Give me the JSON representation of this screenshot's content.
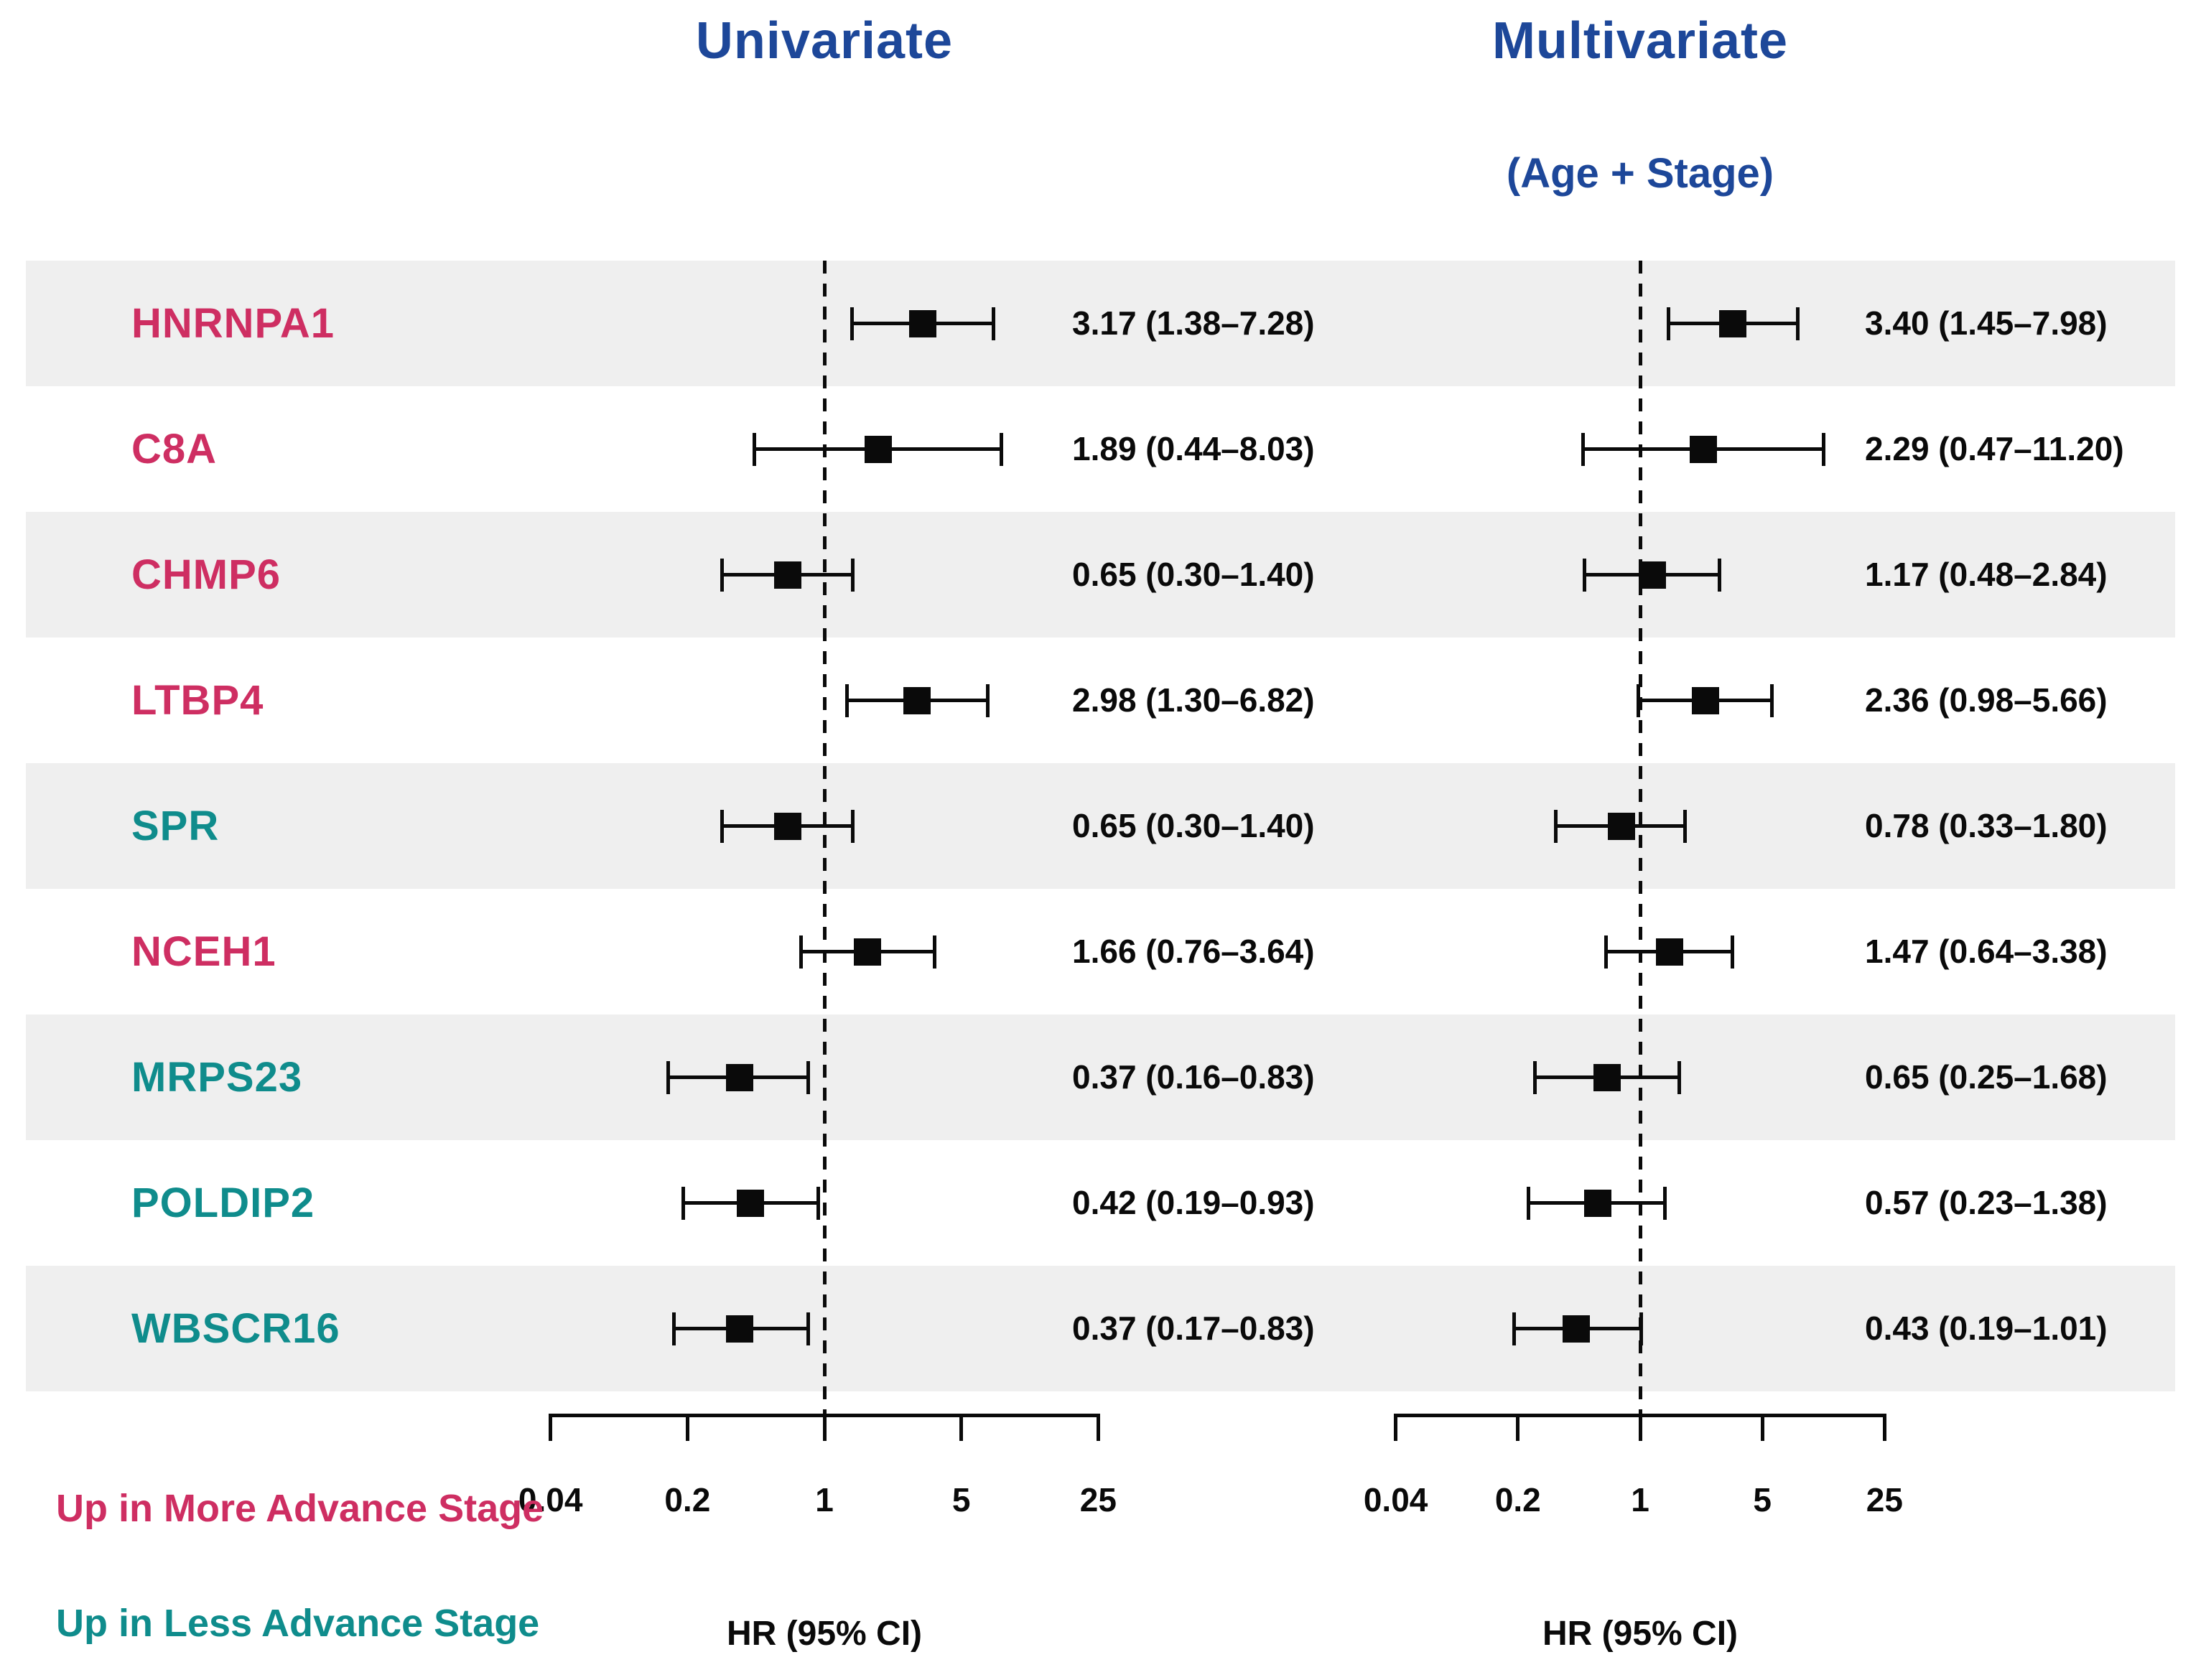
{
  "titles": {
    "univariate": "Univariate",
    "multivariate": "Multivariate",
    "multivariate_sub": "(Age + Stage)"
  },
  "axis": {
    "xlabel": "HR (95% CI)",
    "scale": "log",
    "reference_value": 1
  },
  "legend": {
    "up_more": "Up in More Advance Stage",
    "up_less": "Up in Less Advance Stage",
    "position": "bottom-left"
  },
  "colors": {
    "more_advance": "#ce2e62",
    "less_advance": "#0f8c8c",
    "title_blue": "#1d4799",
    "band_gray": "#efefef",
    "marker_black": "#0a0a0a"
  },
  "chart_data": {
    "type": "scatter",
    "subtype": "forest-plot",
    "xscale": "log",
    "x_ticks": [
      0.04,
      0.2,
      1,
      5,
      25
    ],
    "x_tick_labels": [
      "0.04",
      "0.2",
      "1",
      "5",
      "25"
    ],
    "xlim": [
      0.04,
      25
    ],
    "grid": false,
    "panels": [
      "Univariate",
      "Multivariate (Age + Stage)"
    ],
    "reference_line": 1,
    "rows": [
      {
        "gene": "HNRNPA1",
        "direction": "more",
        "uni": {
          "hr": 3.17,
          "lo": 1.38,
          "hi": 7.28,
          "label": "3.17 (1.38–7.28)"
        },
        "multi": {
          "hr": 3.4,
          "lo": 1.45,
          "hi": 7.98,
          "label": "3.40 (1.45–7.98)"
        }
      },
      {
        "gene": "C8A",
        "direction": "more",
        "uni": {
          "hr": 1.89,
          "lo": 0.44,
          "hi": 8.03,
          "label": "1.89 (0.44–8.03)"
        },
        "multi": {
          "hr": 2.29,
          "lo": 0.47,
          "hi": 11.2,
          "label": "2.29 (0.47–11.20)"
        }
      },
      {
        "gene": "CHMP6",
        "direction": "more",
        "uni": {
          "hr": 0.65,
          "lo": 0.3,
          "hi": 1.4,
          "label": "0.65 (0.30–1.40)"
        },
        "multi": {
          "hr": 1.17,
          "lo": 0.48,
          "hi": 2.84,
          "label": "1.17 (0.48–2.84)"
        }
      },
      {
        "gene": "LTBP4",
        "direction": "more",
        "uni": {
          "hr": 2.98,
          "lo": 1.3,
          "hi": 6.82,
          "label": "2.98 (1.30–6.82)"
        },
        "multi": {
          "hr": 2.36,
          "lo": 0.98,
          "hi": 5.66,
          "label": "2.36 (0.98–5.66)"
        }
      },
      {
        "gene": "SPR",
        "direction": "less",
        "uni": {
          "hr": 0.65,
          "lo": 0.3,
          "hi": 1.4,
          "label": "0.65 (0.30–1.40)"
        },
        "multi": {
          "hr": 0.78,
          "lo": 0.33,
          "hi": 1.8,
          "label": "0.78 (0.33–1.80)"
        }
      },
      {
        "gene": "NCEH1",
        "direction": "more",
        "uni": {
          "hr": 1.66,
          "lo": 0.76,
          "hi": 3.64,
          "label": "1.66 (0.76–3.64)"
        },
        "multi": {
          "hr": 1.47,
          "lo": 0.64,
          "hi": 3.38,
          "label": "1.47 (0.64–3.38)"
        }
      },
      {
        "gene": "MRPS23",
        "direction": "less",
        "uni": {
          "hr": 0.37,
          "lo": 0.16,
          "hi": 0.83,
          "label": "0.37 (0.16–0.83)"
        },
        "multi": {
          "hr": 0.65,
          "lo": 0.25,
          "hi": 1.68,
          "label": "0.65 (0.25–1.68)"
        }
      },
      {
        "gene": "POLDIP2",
        "direction": "less",
        "uni": {
          "hr": 0.42,
          "lo": 0.19,
          "hi": 0.93,
          "label": "0.42 (0.19–0.93)"
        },
        "multi": {
          "hr": 0.57,
          "lo": 0.23,
          "hi": 1.38,
          "label": "0.57 (0.23–1.38)"
        }
      },
      {
        "gene": "WBSCR16",
        "direction": "less",
        "uni": {
          "hr": 0.37,
          "lo": 0.17,
          "hi": 0.83,
          "label": "0.37 (0.17–0.83)"
        },
        "multi": {
          "hr": 0.43,
          "lo": 0.19,
          "hi": 1.01,
          "label": "0.43 (0.19–1.01)"
        }
      }
    ]
  }
}
